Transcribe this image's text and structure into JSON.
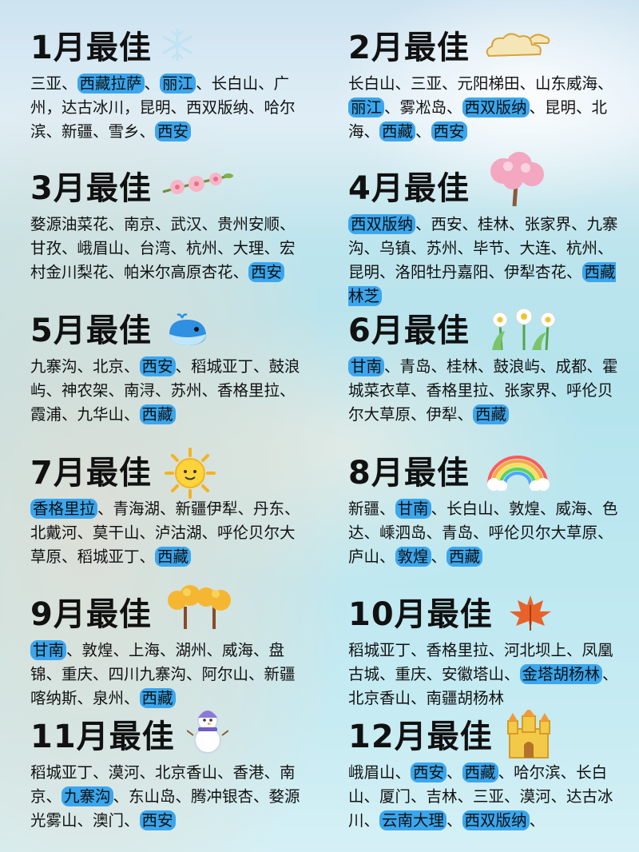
{
  "months": [
    {
      "title": "1月最佳",
      "icon": "snowflake-icon",
      "items": [
        {
          "text": "三亚、"
        },
        {
          "text": "西藏拉萨",
          "hl": true
        },
        {
          "text": "、"
        },
        {
          "text": "丽江",
          "hl": true
        },
        {
          "text": "、长白山、广州，达古冰川，昆明、西双版纳、哈尔滨、新疆、雪乡、"
        },
        {
          "text": "西安",
          "hl": true
        }
      ]
    },
    {
      "title": "2月最佳",
      "icon": "cloud-icon",
      "items": [
        {
          "text": "长白山、三亚、元阳梯田、山东威海、"
        },
        {
          "text": "丽江",
          "hl": true
        },
        {
          "text": "、雾凇岛、"
        },
        {
          "text": "西双版纳",
          "hl": true
        },
        {
          "text": "、昆明、北海、"
        },
        {
          "text": "西藏",
          "hl": true
        },
        {
          "text": "、"
        },
        {
          "text": "西安",
          "hl": true
        }
      ]
    },
    {
      "title": "3月最佳",
      "icon": "peach-blossom-icon",
      "items": [
        {
          "text": "婺源油菜花、南京、武汉、贵州安顺、甘孜、峨眉山、台湾、杭州、大理、宏村金川梨花、帕米尔高原杏花、"
        },
        {
          "text": "西安",
          "hl": true
        }
      ]
    },
    {
      "title": "4月最佳",
      "icon": "cherry-tree-icon",
      "items": [
        {
          "text": "西双版纳",
          "hl": true
        },
        {
          "text": "、西安、桂林、张家界、九寨沟、乌镇、苏州、毕节、大连、杭州、昆明、洛阳牡丹嘉阳、伊犁杏花、"
        },
        {
          "text": "西藏林芝",
          "hl": true
        }
      ]
    },
    {
      "title": "5月最佳",
      "icon": "whale-icon",
      "items": [
        {
          "text": "九寨沟、北京、"
        },
        {
          "text": "西安",
          "hl": true
        },
        {
          "text": "、稻城亚丁、鼓浪屿、神农架、南浔、苏州、香格里拉、霞浦、九华山、"
        },
        {
          "text": "西藏",
          "hl": true
        }
      ]
    },
    {
      "title": "6月最佳",
      "icon": "daisy-icon",
      "items": [
        {
          "text": "甘南",
          "hl": true
        },
        {
          "text": "、青岛、桂林、鼓浪屿、成都、霍城菜衣草、香格里拉、张家界、呼伦贝尔大草原、伊犁、"
        },
        {
          "text": "西藏",
          "hl": true
        }
      ]
    },
    {
      "title": "7月最佳",
      "icon": "sun-icon",
      "items": [
        {
          "text": "香格里拉",
          "hl": true
        },
        {
          "text": "、青海湖、新疆伊犁、丹东、北戴河、莫干山、泸沽湖、呼伦贝尔大草原、稻城亚丁、"
        },
        {
          "text": "西藏",
          "hl": true
        }
      ]
    },
    {
      "title": "8月最佳",
      "icon": "rainbow-icon",
      "items": [
        {
          "text": "新疆、"
        },
        {
          "text": "甘南",
          "hl": true
        },
        {
          "text": "、长白山、敦煌、威海、色达、嵊泗岛、青岛、呼伦贝尔大草原、庐山、"
        },
        {
          "text": "敦煌",
          "hl": true
        },
        {
          "text": "、"
        },
        {
          "text": "西藏",
          "hl": true
        }
      ]
    },
    {
      "title": "9月最佳",
      "icon": "autumn-trees-icon",
      "items": [
        {
          "text": "甘南",
          "hl": true
        },
        {
          "text": "、敦煌、上海、湖州、威海、盘锦、重庆、四川九寨沟、阿尔山、新疆喀纳斯、泉州、"
        },
        {
          "text": "西藏",
          "hl": true
        }
      ]
    },
    {
      "title": "10月最佳",
      "icon": "maple-leaf-icon",
      "items": [
        {
          "text": "稻城亚丁、香格里拉、河北坝上、凤凰古城、重庆、安徽塔山、"
        },
        {
          "text": "金塔胡杨林",
          "hl": true
        },
        {
          "text": "、北京香山、南疆胡杨林"
        }
      ]
    },
    {
      "title": "11月最佳",
      "icon": "snowman-icon",
      "items": [
        {
          "text": "稻城亚丁、漠河、北京香山、香港、南京、"
        },
        {
          "text": "九寨沟",
          "hl": true
        },
        {
          "text": "、东山岛、腾冲银杏、婺源光雾山、澳门、"
        },
        {
          "text": "西安",
          "hl": true
        }
      ]
    },
    {
      "title": "12月最佳",
      "icon": "castle-icon",
      "items": [
        {
          "text": "峨眉山、"
        },
        {
          "text": "西安",
          "hl": true
        },
        {
          "text": "、"
        },
        {
          "text": "西藏",
          "hl": true
        },
        {
          "text": "、哈尔滨、长白山、厦门、吉林、三亚、漠河、达古冰川、"
        },
        {
          "text": "云南大理",
          "hl": true
        },
        {
          "text": "、"
        },
        {
          "text": "西双版纳",
          "hl": true
        },
        {
          "text": "、"
        }
      ]
    }
  ]
}
